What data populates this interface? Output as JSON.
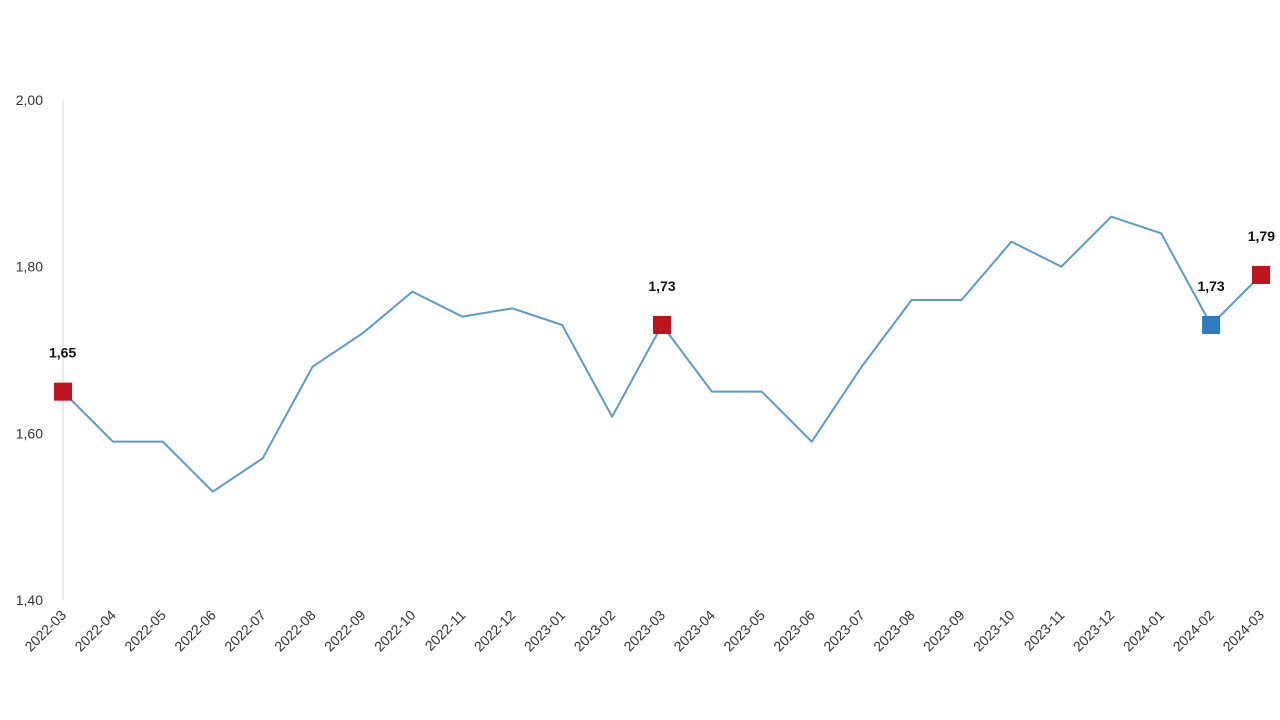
{
  "chart_data": {
    "type": "line",
    "title": "",
    "xlabel": "",
    "ylabel": "",
    "ylim": [
      1.4,
      2.0
    ],
    "yticks": [
      "1,40",
      "1,60",
      "1,80",
      "2,00"
    ],
    "ytick_values": [
      1.4,
      1.6,
      1.8,
      2.0
    ],
    "grid": false,
    "legend": "none",
    "line_color": "#5b9bc8",
    "highlight_red": "#c0141c",
    "highlight_blue": "#2e7bbf",
    "categories": [
      "2022-03",
      "2022-04",
      "2022-05",
      "2022-06",
      "2022-07",
      "2022-08",
      "2022-09",
      "2022-10",
      "2022-11",
      "2022-12",
      "2023-01",
      "2023-02",
      "2023-03",
      "2023-04",
      "2023-05",
      "2023-06",
      "2023-07",
      "2023-08",
      "2023-09",
      "2023-10",
      "2023-11",
      "2023-12",
      "2024-01",
      "2024-02",
      "2024-03"
    ],
    "values": [
      1.65,
      1.59,
      1.59,
      1.53,
      1.57,
      1.68,
      1.72,
      1.77,
      1.74,
      1.75,
      1.73,
      1.62,
      1.73,
      1.65,
      1.65,
      1.59,
      1.68,
      1.76,
      1.76,
      1.83,
      1.8,
      1.86,
      1.84,
      1.73,
      1.79
    ],
    "highlights": [
      {
        "category": "2022-03",
        "label": "1,65",
        "color": "red"
      },
      {
        "category": "2023-03",
        "label": "1,73",
        "color": "red"
      },
      {
        "category": "2024-02",
        "label": "1,73",
        "color": "blue"
      },
      {
        "category": "2024-03",
        "label": "1,79",
        "color": "red"
      }
    ]
  }
}
